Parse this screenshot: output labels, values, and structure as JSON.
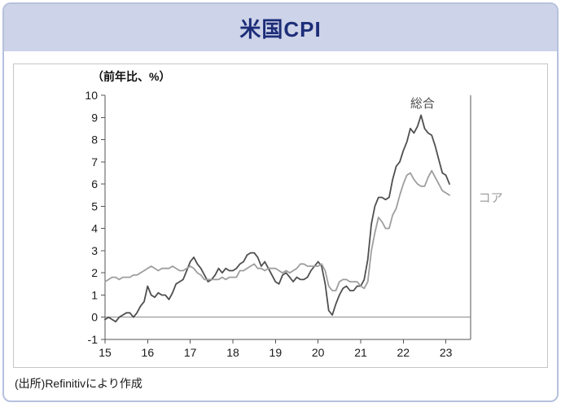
{
  "header": {
    "title": "米国CPI"
  },
  "footer": {
    "source": "(出所)Refinitivにより作成"
  },
  "colors": {
    "card_border": "#b6c1de",
    "header_band": "#cdd3e8",
    "title_text": "#1c2d78",
    "headline_line": "#4f4f4f",
    "core_line": "#9e9e9e"
  },
  "chart_data": {
    "type": "line",
    "title": "米国CPI",
    "unit_label": "（前年比、%）",
    "xlabel": "",
    "ylabel": "",
    "legend": "inline-labels",
    "grid": false,
    "x_ticks": [
      15,
      16,
      17,
      18,
      19,
      20,
      21,
      22,
      23
    ],
    "xlim": [
      2015,
      2023.58
    ],
    "ylim": [
      -1,
      10
    ],
    "y_tick_step": 1,
    "zero_line": true,
    "series": [
      {
        "key": "headline",
        "name": "総合",
        "color": "#4f4f4f",
        "start": 2015.0,
        "step": 0.0833333,
        "label_pos": {
          "x": 2022.45,
          "y": 9.45
        },
        "values": [
          -0.1,
          0.0,
          -0.1,
          -0.2,
          0.0,
          0.1,
          0.2,
          0.2,
          0.0,
          0.2,
          0.5,
          0.7,
          1.4,
          1.0,
          0.9,
          1.1,
          1.0,
          1.0,
          0.8,
          1.1,
          1.5,
          1.6,
          1.7,
          2.1,
          2.5,
          2.7,
          2.4,
          2.2,
          1.9,
          1.6,
          1.7,
          1.9,
          2.2,
          2.0,
          2.2,
          2.1,
          2.1,
          2.2,
          2.4,
          2.5,
          2.8,
          2.9,
          2.9,
          2.7,
          2.3,
          2.5,
          2.2,
          1.9,
          1.6,
          1.5,
          1.9,
          2.0,
          1.8,
          1.6,
          1.8,
          1.7,
          1.7,
          1.8,
          2.1,
          2.3,
          2.5,
          2.3,
          1.5,
          0.3,
          0.1,
          0.6,
          1.0,
          1.3,
          1.4,
          1.2,
          1.2,
          1.4,
          1.4,
          1.7,
          2.6,
          4.2,
          5.0,
          5.4,
          5.4,
          5.3,
          5.4,
          6.2,
          6.8,
          7.0,
          7.5,
          7.9,
          8.5,
          8.3,
          8.6,
          9.1,
          8.5,
          8.3,
          8.2,
          7.7,
          7.1,
          6.5,
          6.4,
          6.0
        ]
      },
      {
        "key": "core",
        "name": "コア",
        "color": "#9e9e9e",
        "start": 2015.0,
        "step": 0.0833333,
        "label_pos": {
          "x": 2024.05,
          "y": 5.2
        },
        "values": [
          1.6,
          1.7,
          1.8,
          1.8,
          1.7,
          1.8,
          1.8,
          1.8,
          1.9,
          1.9,
          2.0,
          2.1,
          2.2,
          2.3,
          2.2,
          2.1,
          2.2,
          2.2,
          2.2,
          2.3,
          2.2,
          2.1,
          2.1,
          2.2,
          2.3,
          2.2,
          2.0,
          1.9,
          1.7,
          1.7,
          1.7,
          1.7,
          1.7,
          1.8,
          1.7,
          1.8,
          1.8,
          1.8,
          2.1,
          2.1,
          2.2,
          2.3,
          2.4,
          2.2,
          2.2,
          2.1,
          2.2,
          2.2,
          2.2,
          2.1,
          2.0,
          2.1,
          2.0,
          2.1,
          2.2,
          2.4,
          2.4,
          2.3,
          2.3,
          2.3,
          2.3,
          2.4,
          2.1,
          1.4,
          1.2,
          1.2,
          1.6,
          1.7,
          1.7,
          1.6,
          1.6,
          1.6,
          1.4,
          1.3,
          1.6,
          3.0,
          3.8,
          4.5,
          4.3,
          4.0,
          4.0,
          4.6,
          4.9,
          5.5,
          6.0,
          6.4,
          6.5,
          6.2,
          6.0,
          5.9,
          5.9,
          6.3,
          6.6,
          6.3,
          6.0,
          5.7,
          5.6,
          5.5
        ]
      }
    ]
  }
}
